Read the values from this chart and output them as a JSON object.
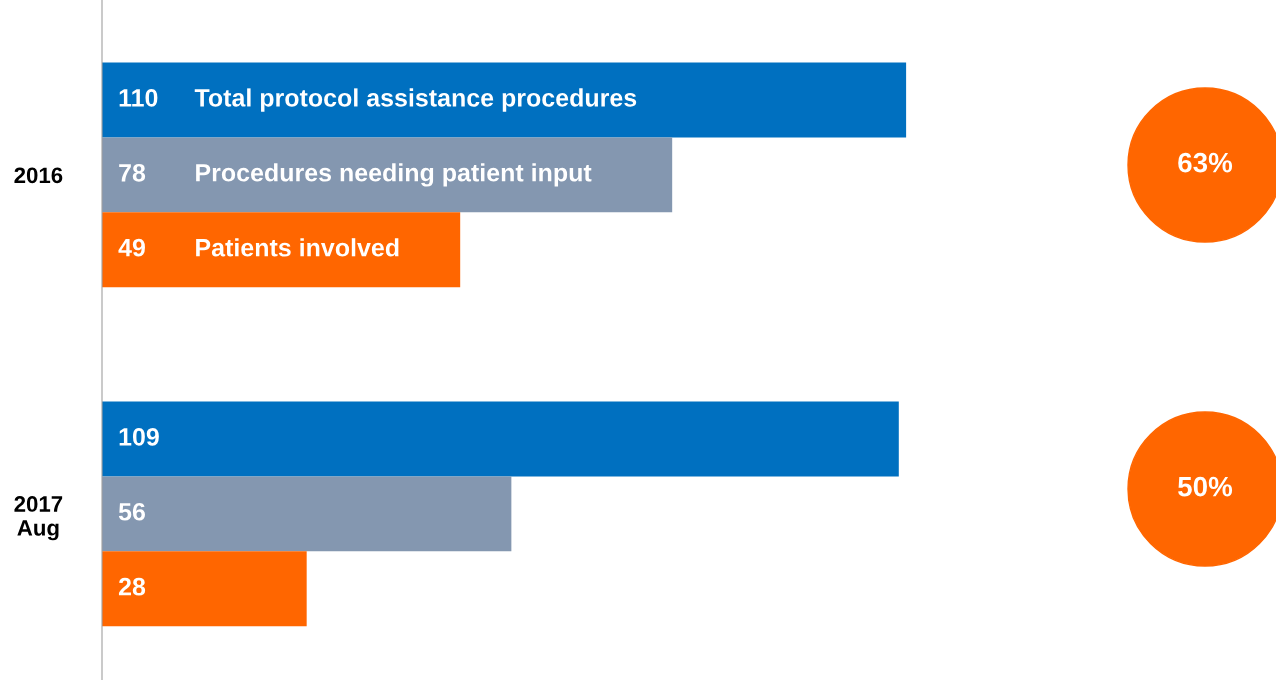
{
  "chart_data": {
    "type": "bar",
    "orientation": "horizontal",
    "categories": [
      "2016",
      "2017\nAug"
    ],
    "series": [
      {
        "name": "Total protocol assistance procedures",
        "color": "#0070c0",
        "values": [
          110,
          109
        ]
      },
      {
        "name": "Procedures needing patient input",
        "color": "#8497b0",
        "values": [
          78,
          56
        ]
      },
      {
        "name": "Patients involved",
        "color": "#ff6600",
        "values": [
          49,
          28
        ]
      }
    ],
    "data_labels": true,
    "legend": false,
    "grid": false,
    "tick_labels": "y",
    "annotations": [
      "63%",
      "50%"
    ]
  }
}
